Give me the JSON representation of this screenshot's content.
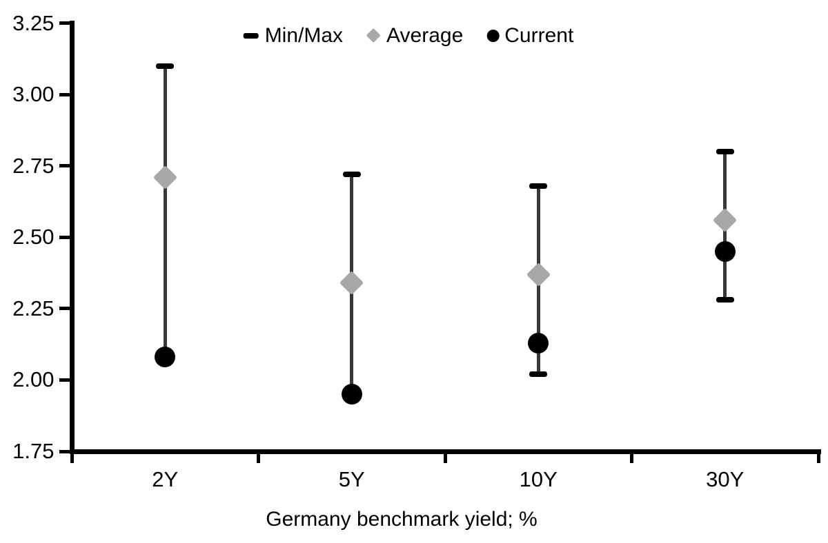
{
  "chart_data": {
    "type": "scatter",
    "subtype": "min-max-range-with-average-and-current",
    "title": "",
    "xlabel": "Germany benchmark yield; %",
    "ylabel": "",
    "categories": [
      "2Y",
      "5Y",
      "10Y",
      "30Y"
    ],
    "ylim": [
      1.75,
      3.25
    ],
    "ytick_step": 0.25,
    "ytick_labels": [
      "3.25",
      "3.00",
      "2.75",
      "2.50",
      "2.25",
      "2.00",
      "1.75"
    ],
    "grid": false,
    "legend_position": "top-center",
    "background_color": "#ffffff",
    "axis_color": "#000000",
    "series": [
      {
        "name": "Min/Max",
        "marker": "dash",
        "color": "#000000",
        "line_color": "#383838",
        "max": [
          3.1,
          2.72,
          2.68,
          2.8
        ],
        "min": [
          2.08,
          1.95,
          2.02,
          2.28
        ],
        "min_cap_hidden": [
          true,
          true,
          false,
          false
        ]
      },
      {
        "name": "Average",
        "marker": "diamond",
        "color": "#a8a8a8",
        "values": [
          2.71,
          2.34,
          2.37,
          2.56
        ]
      },
      {
        "name": "Current",
        "marker": "circle",
        "color": "#000000",
        "values": [
          2.08,
          1.95,
          2.13,
          2.45
        ]
      }
    ]
  }
}
